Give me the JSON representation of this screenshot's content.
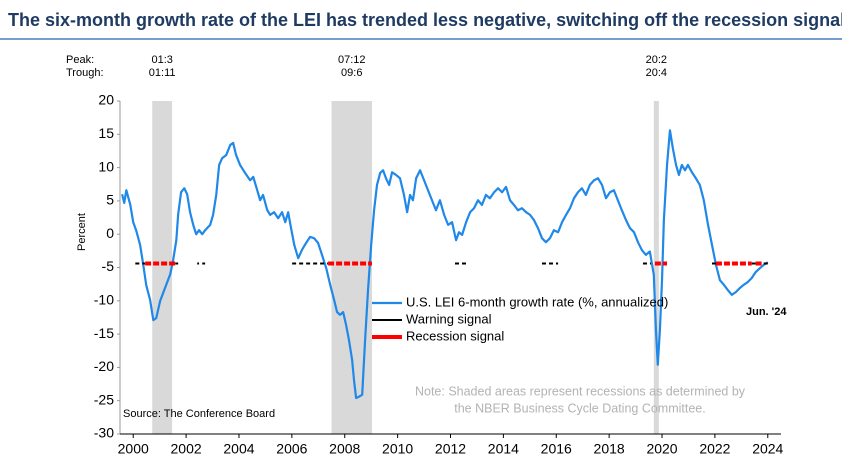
{
  "chart_data": {
    "type": "line",
    "title": "The six-month growth rate of the LEI has trended less negative, switching off the recession signal",
    "y_label": "Percent",
    "xlim": [
      2000,
      2025
    ],
    "xticks": [
      {
        "value": 2000.5,
        "label": "2000"
      },
      {
        "value": 2002.5,
        "label": "2002"
      },
      {
        "value": 2004.5,
        "label": "2004"
      },
      {
        "value": 2006.5,
        "label": "2006"
      },
      {
        "value": 2008.5,
        "label": "2008"
      },
      {
        "value": 2010.5,
        "label": "2010"
      },
      {
        "value": 2012.5,
        "label": "2012"
      },
      {
        "value": 2014.5,
        "label": "2014"
      },
      {
        "value": 2016.5,
        "label": "2016"
      },
      {
        "value": 2018.5,
        "label": "2018"
      },
      {
        "value": 2020.5,
        "label": "2020"
      },
      {
        "value": 2022.5,
        "label": "2022"
      },
      {
        "value": 2024.5,
        "label": "2024"
      }
    ],
    "ylim": [
      -30,
      20
    ],
    "yticks": [
      20,
      15,
      10,
      5,
      0,
      -5,
      -10,
      -15,
      -20,
      -25,
      -30
    ],
    "series": [
      {
        "name": "U.S. LEI 6-month growth rate (%, annualized)",
        "color": "#1f88e8",
        "x": [
          2000.08,
          2000.16,
          2000.24,
          2000.39,
          2000.5,
          2000.61,
          2000.76,
          2000.88,
          2000.99,
          2001.14,
          2001.26,
          2001.37,
          2001.52,
          2001.71,
          2001.9,
          2002.01,
          2002.13,
          2002.2,
          2002.31,
          2002.43,
          2002.54,
          2002.65,
          2002.77,
          2002.88,
          2002.99,
          2003.11,
          2003.22,
          2003.41,
          2003.52,
          2003.64,
          2003.75,
          2003.86,
          2004.02,
          2004.17,
          2004.28,
          2004.39,
          2004.54,
          2004.73,
          2004.92,
          2005.04,
          2005.19,
          2005.3,
          2005.41,
          2005.57,
          2005.68,
          2005.83,
          2005.98,
          2006.13,
          2006.25,
          2006.36,
          2006.47,
          2006.59,
          2006.74,
          2006.89,
          2007.04,
          2007.19,
          2007.34,
          2007.49,
          2007.64,
          2007.8,
          2007.95,
          2008.1,
          2008.21,
          2008.32,
          2008.44,
          2008.55,
          2008.66,
          2008.78,
          2008.85,
          2008.93,
          2009.04,
          2009.16,
          2009.27,
          2009.38,
          2009.5,
          2009.61,
          2009.72,
          2009.84,
          2009.95,
          2010.06,
          2010.18,
          2010.29,
          2010.44,
          2010.59,
          2010.74,
          2010.86,
          2010.97,
          2011.08,
          2011.2,
          2011.35,
          2011.5,
          2011.65,
          2011.8,
          2011.95,
          2012.1,
          2012.26,
          2012.41,
          2012.56,
          2012.71,
          2012.82,
          2012.94,
          2013.09,
          2013.24,
          2013.39,
          2013.54,
          2013.69,
          2013.84,
          2013.99,
          2014.15,
          2014.3,
          2014.45,
          2014.6,
          2014.75,
          2014.9,
          2015.05,
          2015.2,
          2015.36,
          2015.51,
          2015.66,
          2015.81,
          2015.96,
          2016.11,
          2016.26,
          2016.41,
          2016.57,
          2016.72,
          2016.87,
          2017.02,
          2017.17,
          2017.32,
          2017.47,
          2017.62,
          2017.77,
          2017.93,
          2018.08,
          2018.23,
          2018.38,
          2018.53,
          2018.68,
          2018.83,
          2018.98,
          2019.14,
          2019.29,
          2019.44,
          2019.59,
          2019.74,
          2019.89,
          2020.04,
          2020.19,
          2020.27,
          2020.34,
          2020.42,
          2020.5,
          2020.57,
          2020.69,
          2020.8,
          2020.91,
          2021.03,
          2021.14,
          2021.25,
          2021.37,
          2021.48,
          2021.63,
          2021.78,
          2021.93,
          2022.08,
          2022.24,
          2022.39,
          2022.54,
          2022.69,
          2022.84,
          2022.99,
          2023.14,
          2023.29,
          2023.44,
          2023.59,
          2023.74,
          2023.89,
          2024.04,
          2024.2,
          2024.35,
          2024.5
        ],
        "values": [
          6.0,
          4.7,
          6.6,
          4.4,
          1.8,
          0.6,
          -1.6,
          -4.6,
          -7.6,
          -9.9,
          -12.9,
          -12.6,
          -10,
          -8,
          -6,
          -3.9,
          -0.9,
          3,
          6.3,
          6.9,
          6,
          3.3,
          1.4,
          0,
          0.6,
          0,
          0.6,
          1.4,
          2.9,
          5.9,
          10.4,
          11.4,
          11.9,
          13.4,
          13.7,
          11.9,
          10.4,
          9.2,
          8.1,
          8.6,
          6.6,
          5.1,
          5.9,
          3.6,
          2.9,
          3.3,
          2.4,
          3.3,
          1.8,
          3.3,
          0.9,
          -1.6,
          -3.6,
          -2.3,
          -1.3,
          -0.4,
          -0.6,
          -1.3,
          -3.1,
          -5.1,
          -7.6,
          -9.9,
          -11.7,
          -12.1,
          -11.7,
          -13.6,
          -15.9,
          -18.9,
          -21.9,
          -24.6,
          -24.4,
          -24.1,
          -15.9,
          -8.4,
          -1.6,
          3.6,
          7.4,
          9.2,
          9.6,
          8.4,
          7.4,
          9.3,
          8.9,
          8.4,
          5.9,
          3.3,
          5.9,
          5.1,
          8.4,
          9.6,
          8.1,
          6.6,
          5.1,
          3.6,
          5.1,
          2.9,
          1.4,
          1.8,
          -0.9,
          0.3,
          -0.1,
          1.8,
          3.3,
          3.9,
          5.1,
          4.4,
          5.9,
          5.4,
          6.3,
          6.9,
          6.3,
          7.1,
          5.1,
          4.4,
          3.6,
          3.9,
          3.3,
          2.9,
          2.1,
          0.9,
          -0.6,
          -1.2,
          -0.6,
          0.6,
          0.3,
          1.8,
          2.9,
          3.9,
          5.4,
          6.3,
          6.9,
          5.9,
          7.4,
          8.1,
          8.4,
          7.4,
          5.4,
          6.3,
          6.6,
          5.1,
          3.6,
          2.1,
          0.9,
          0.3,
          -1.2,
          -2.4,
          -3.1,
          -2.6,
          -6.1,
          -14.4,
          -19.6,
          -14.4,
          -6.9,
          2.1,
          10.4,
          15.6,
          12.9,
          10.4,
          8.9,
          10.4,
          9.6,
          10.4,
          9.3,
          8.4,
          7.4,
          5.1,
          1.4,
          -1.6,
          -4.6,
          -6.9,
          -7.6,
          -8.4,
          -9.1,
          -8.7,
          -8.1,
          -7.6,
          -7.2,
          -6.6,
          -5.7,
          -5.1,
          -4.6,
          -4.2
        ]
      }
    ],
    "signals": {
      "level": -4.4,
      "warning": {
        "name": "Warning signal",
        "color": "#000000",
        "segments": [
          [
            2000.58,
            2000.95
          ],
          [
            2002.09,
            2002.2
          ],
          [
            2002.92,
            2002.99
          ],
          [
            2003.11,
            2003.22
          ],
          [
            2006.51,
            2007.87
          ],
          [
            2012.67,
            2013.09
          ],
          [
            2015.96,
            2016.57
          ],
          [
            2019.78,
            2020.08
          ],
          [
            2022.39,
            2022.54
          ],
          [
            2023.89,
            2024.04
          ],
          [
            2024.35,
            2024.58
          ]
        ]
      },
      "recession": {
        "name": "Recession signal",
        "color": "#ff0000",
        "segments": [
          [
            2000.95,
            2002.09
          ],
          [
            2007.87,
            2009.53
          ],
          [
            2020.23,
            2020.69
          ],
          [
            2022.54,
            2023.89
          ],
          [
            2024.04,
            2024.35
          ]
        ]
      }
    },
    "peak_label": "Peak:",
    "trough_label": "Trough:",
    "shading_color": "#d9d9d9",
    "recessions": [
      {
        "peak": "01:3",
        "trough": "01:11",
        "start": 2001.22,
        "end": 2001.97
      },
      {
        "peak": "07:12",
        "trough": "09:6",
        "start": 2008.0,
        "end": 2009.53
      },
      {
        "peak": "20:2",
        "trough": "20:4",
        "start": 2020.19,
        "end": 2020.38
      }
    ],
    "last_label": "Jun. '24",
    "note": [
      "Note: Shaded areas represent recessions as determined by",
      "the NBER Business Cycle Dating Committee."
    ],
    "source": "Source: The Conference Board"
  }
}
